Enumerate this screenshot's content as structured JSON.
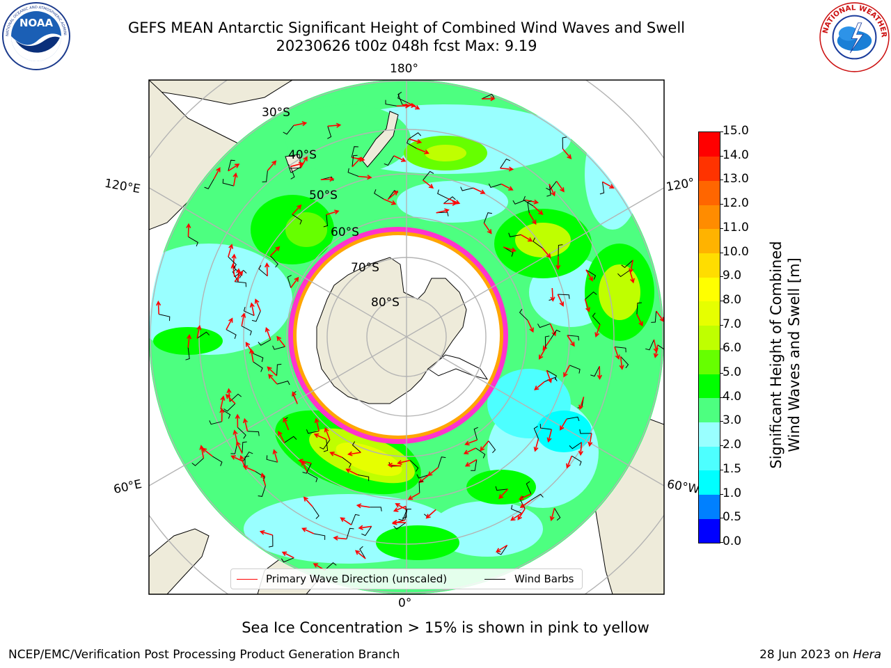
{
  "header": {
    "title_line1": "GEFS MEAN Antarctic Significant Height of Combined Wind Waves and Swell",
    "title_line2": "20230626 t00z 048h fcst   Max: 9.19"
  },
  "logos": {
    "left": {
      "name": "NOAA",
      "ring_text": "NATIONAL OCEANIC AND ATMOSPHERIC ADMINISTRATION · U.S. DEPARTMENT OF COMMERCE"
    },
    "right": {
      "name": "NATIONAL WEATHER SERVICE"
    }
  },
  "map": {
    "projection": "south-polar-stereographic",
    "longitude_labels": {
      "top": "180°",
      "bottom": "0°",
      "left_upper": "120°E",
      "left_lower": "60°E",
      "right_upper": "120°",
      "right_lower": "60°W"
    },
    "latitude_labels": [
      "30°S",
      "40°S",
      "50°S",
      "60°S",
      "70°S",
      "80°S"
    ],
    "colors": {
      "land": "#eeebda",
      "ice_shelf": "#ffffff",
      "ice_edge": [
        "#ff33cc",
        "#ffa500",
        "#ffff00"
      ],
      "wave_arrow": "#ff0000",
      "barb": "#000000",
      "graticule": "#b3b3b3"
    }
  },
  "legend": {
    "wave_label": "Primary Wave Direction (unscaled)",
    "barb_label": "Wind Barbs"
  },
  "colorbar": {
    "label_line1": "Significant Height of Combined",
    "label_line2": "Wind Waves and Swell [m]",
    "ticks": [
      "15.0",
      "14.0",
      "13.0",
      "12.0",
      "11.0",
      "10.0",
      "9.0",
      "8.0",
      "7.0",
      "6.0",
      "5.0",
      "4.0",
      "3.0",
      "2.0",
      "1.5",
      "1.0",
      "0.5",
      "0.0"
    ],
    "colors": [
      "#0000ff",
      "#0080ff",
      "#00ffff",
      "#4dffff",
      "#99ffff",
      "#4dff80",
      "#00ff00",
      "#66ff00",
      "#bfff00",
      "#e6ff00",
      "#ffff00",
      "#ffdd00",
      "#ffb300",
      "#ff8c00",
      "#ff6600",
      "#ff3300",
      "#ff0000"
    ]
  },
  "footer": {
    "caption": "Sea Ice Concentration > 15% is shown in pink to yellow",
    "left": "NCEP/EMC/Verification Post Processing Product Generation Branch",
    "right_date": "28 Jun 2023 on ",
    "right_host": "Hera"
  }
}
